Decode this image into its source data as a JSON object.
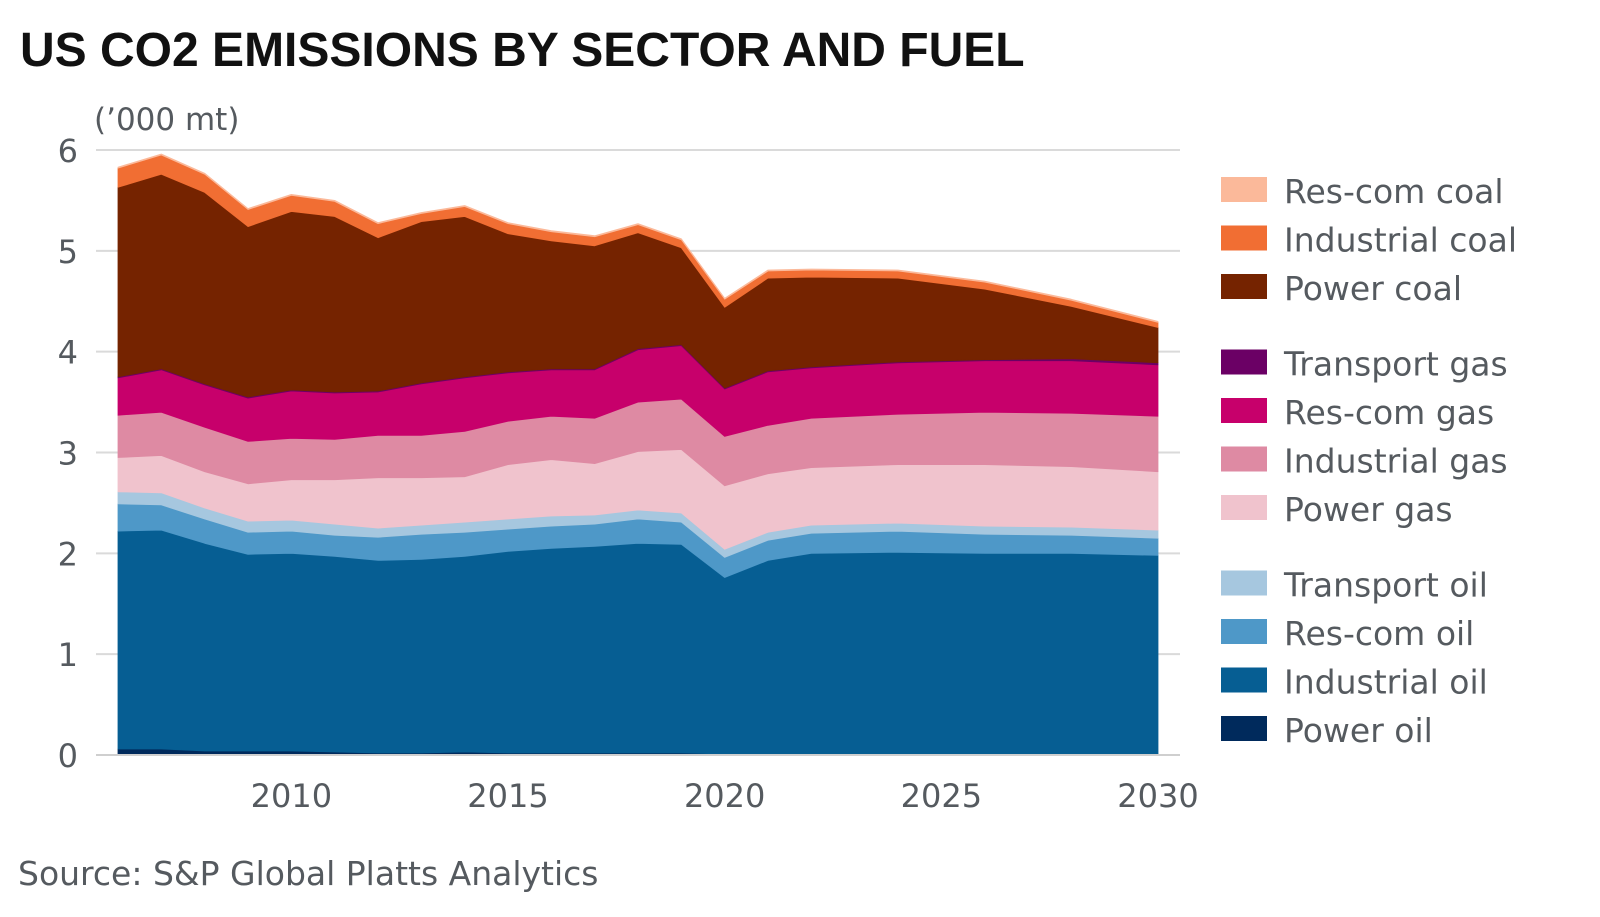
{
  "chart_data": {
    "type": "area",
    "stacked": true,
    "title": "US CO2 EMISSIONS BY SECTOR AND FUEL",
    "unit_label": "(’000 mt)",
    "source": "Source: S&P Global Platts Analytics",
    "xlim": [
      2006,
      2030
    ],
    "ylim": [
      0,
      6
    ],
    "y_ticks": [
      "0",
      "1",
      "2",
      "3",
      "4",
      "5",
      "6"
    ],
    "x_ticks": [
      "2010",
      "2015",
      "2020",
      "2025",
      "2030"
    ],
    "x_tick_values": [
      2010,
      2015,
      2020,
      2025,
      2030
    ],
    "grid": true,
    "years": [
      2006,
      2007,
      2008,
      2009,
      2010,
      2011,
      2012,
      2013,
      2014,
      2015,
      2016,
      2017,
      2018,
      2019,
      2020,
      2021,
      2022,
      2024,
      2026,
      2028,
      2030
    ],
    "series": [
      {
        "name": "Power oil",
        "color": "#002a5c",
        "values": [
          0.06,
          0.06,
          0.04,
          0.04,
          0.04,
          0.03,
          0.02,
          0.02,
          0.03,
          0.02,
          0.02,
          0.02,
          0.02,
          0.02,
          0.01,
          0.01,
          0.01,
          0.01,
          0.01,
          0.01,
          0.01
        ]
      },
      {
        "name": "Industrial oil",
        "color": "#065e93",
        "values": [
          2.16,
          2.17,
          2.06,
          1.95,
          1.96,
          1.94,
          1.91,
          1.92,
          1.94,
          2.0,
          2.03,
          2.05,
          2.08,
          2.07,
          1.75,
          1.92,
          1.99,
          2.0,
          1.99,
          1.99,
          1.97
        ]
      },
      {
        "name": "Res-com oil",
        "color": "#4e98c8",
        "values": [
          0.27,
          0.25,
          0.24,
          0.22,
          0.22,
          0.21,
          0.23,
          0.25,
          0.24,
          0.22,
          0.22,
          0.22,
          0.24,
          0.22,
          0.2,
          0.2,
          0.2,
          0.21,
          0.19,
          0.18,
          0.17
        ]
      },
      {
        "name": "Transport oil",
        "color": "#a6c7df",
        "values": [
          0.12,
          0.12,
          0.11,
          0.11,
          0.11,
          0.11,
          0.09,
          0.09,
          0.1,
          0.1,
          0.1,
          0.09,
          0.09,
          0.09,
          0.08,
          0.08,
          0.08,
          0.08,
          0.08,
          0.08,
          0.08
        ]
      },
      {
        "name": "Power gas",
        "color": "#f0c3cd",
        "values": [
          0.34,
          0.37,
          0.36,
          0.37,
          0.4,
          0.44,
          0.5,
          0.47,
          0.45,
          0.54,
          0.56,
          0.51,
          0.58,
          0.63,
          0.63,
          0.58,
          0.57,
          0.58,
          0.61,
          0.6,
          0.58
        ]
      },
      {
        "name": "Industrial gas",
        "color": "#de8aa3",
        "values": [
          0.42,
          0.43,
          0.44,
          0.42,
          0.41,
          0.4,
          0.42,
          0.42,
          0.45,
          0.43,
          0.43,
          0.45,
          0.49,
          0.5,
          0.49,
          0.48,
          0.49,
          0.5,
          0.52,
          0.53,
          0.55
        ]
      },
      {
        "name": "Res-com gas",
        "color": "#c7006b",
        "values": [
          0.37,
          0.42,
          0.42,
          0.43,
          0.47,
          0.46,
          0.43,
          0.51,
          0.53,
          0.48,
          0.46,
          0.48,
          0.52,
          0.53,
          0.47,
          0.53,
          0.5,
          0.51,
          0.51,
          0.52,
          0.51
        ]
      },
      {
        "name": "Transport gas",
        "color": "#6b0065",
        "values": [
          0.01,
          0.01,
          0.01,
          0.01,
          0.01,
          0.01,
          0.01,
          0.01,
          0.01,
          0.01,
          0.01,
          0.01,
          0.01,
          0.01,
          0.01,
          0.01,
          0.01,
          0.01,
          0.01,
          0.02,
          0.02
        ]
      },
      {
        "name": "Power coal",
        "color": "#752300",
        "values": [
          1.88,
          1.93,
          1.9,
          1.69,
          1.77,
          1.74,
          1.52,
          1.6,
          1.59,
          1.37,
          1.27,
          1.22,
          1.15,
          0.96,
          0.8,
          0.92,
          0.89,
          0.83,
          0.7,
          0.52,
          0.35
        ]
      },
      {
        "name": "Industrial coal",
        "color": "#f16e33",
        "values": [
          0.19,
          0.19,
          0.18,
          0.17,
          0.16,
          0.15,
          0.14,
          0.08,
          0.1,
          0.1,
          0.09,
          0.09,
          0.08,
          0.08,
          0.08,
          0.07,
          0.07,
          0.07,
          0.07,
          0.06,
          0.05
        ]
      },
      {
        "name": "Res-com coal",
        "color": "#fbb99a",
        "values": [
          0.01,
          0.01,
          0.01,
          0.01,
          0.01,
          0.01,
          0.01,
          0.01,
          0.01,
          0.01,
          0.01,
          0.01,
          0.01,
          0.01,
          0.01,
          0.01,
          0.01,
          0.01,
          0.01,
          0.01,
          0.01
        ]
      }
    ],
    "legend_groups": [
      [
        "Res-com coal",
        "Industrial coal",
        "Power coal"
      ],
      [
        "Transport gas",
        "Res-com gas",
        "Industrial gas",
        "Power gas"
      ],
      [
        "Transport oil",
        "Res-com oil",
        "Industrial oil",
        "Power oil"
      ]
    ]
  }
}
